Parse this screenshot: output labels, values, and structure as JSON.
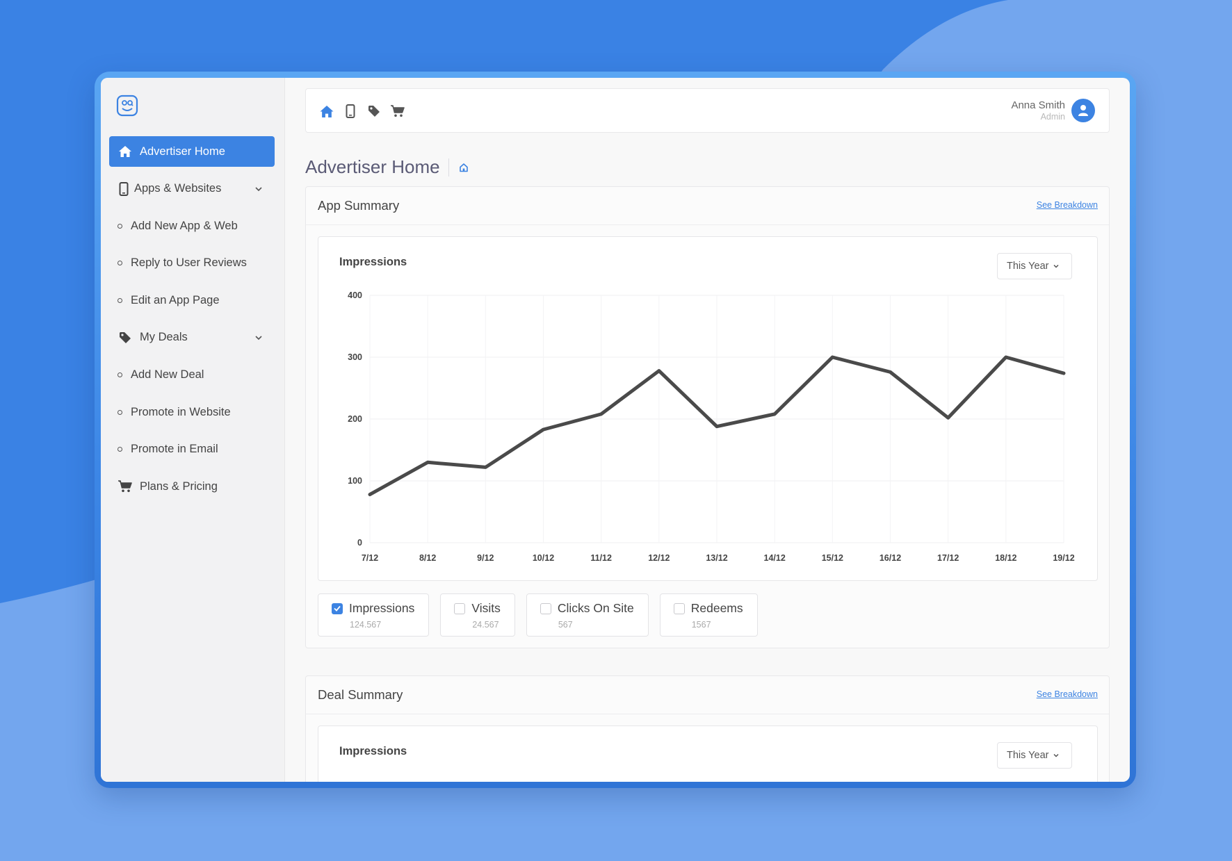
{
  "sidebar": {
    "logo_icon": "smiley-face-logo",
    "items": [
      {
        "label": "Advertiser Home",
        "icon": "home-icon",
        "active": true
      },
      {
        "label": "Apps & Websites",
        "icon": "phone-icon",
        "expandable": true
      },
      {
        "label": "Add New App & Web",
        "sub": true
      },
      {
        "label": "Reply to User Reviews",
        "sub": true
      },
      {
        "label": "Edit an App Page",
        "sub": true
      },
      {
        "label": "My Deals",
        "icon": "tag-icon",
        "expandable": true
      },
      {
        "label": "Add New Deal",
        "sub": true
      },
      {
        "label": "Promote in Website",
        "sub": true
      },
      {
        "label": "Promote in Email",
        "sub": true
      },
      {
        "label": "Plans & Pricing",
        "icon": "cart-icon"
      }
    ]
  },
  "topbar": {
    "icons": [
      "home-icon",
      "phone-icon",
      "tag-icon",
      "cart-icon"
    ],
    "user": {
      "name": "Anna Smith",
      "role": "Admin"
    }
  },
  "page": {
    "title": "Advertiser Home"
  },
  "app_summary": {
    "title": "App Summary",
    "link": "See Breakdown",
    "chart_title": "Impressions",
    "period": "This Year",
    "legend": [
      {
        "label": "Impressions",
        "value": "124.567",
        "checked": true
      },
      {
        "label": "Visits",
        "value": "24.567",
        "checked": false
      },
      {
        "label": "Clicks On Site",
        "value": "567",
        "checked": false
      },
      {
        "label": "Redeems",
        "value": "1567",
        "checked": false
      }
    ]
  },
  "deal_summary": {
    "title": "Deal Summary",
    "link": "See Breakdown",
    "chart_title": "Impressions",
    "period": "This Year"
  },
  "colors": {
    "accent": "#3c83e2",
    "line": "#4a4a4a"
  },
  "chart_data": {
    "type": "line",
    "categories": [
      "7/12",
      "8/12",
      "9/12",
      "10/12",
      "11/12",
      "12/12",
      "13/12",
      "14/12",
      "15/12",
      "16/12",
      "17/12",
      "18/12",
      "19/12"
    ],
    "series": [
      {
        "name": "Impressions",
        "values": [
          78,
          130,
          122,
          183,
          208,
          278,
          188,
          208,
          300,
          276,
          202,
          300,
          274
        ]
      }
    ],
    "yticks": [
      0,
      100,
      200,
      300,
      400
    ],
    "ylim": [
      0,
      400
    ],
    "grid": true
  }
}
